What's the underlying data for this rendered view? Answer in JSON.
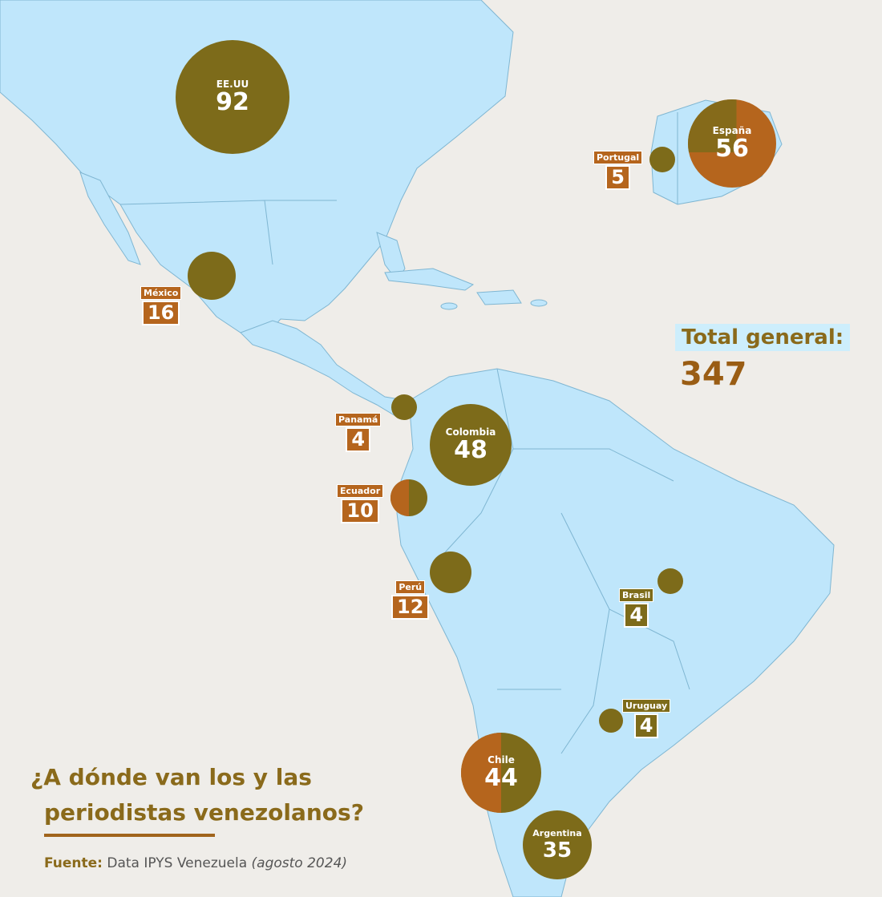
{
  "colors": {
    "land_background": "#efede9",
    "highlighted_countries": "#bfe6fb",
    "borders": "#7fb6d2",
    "bubble_olive": "#7d6b1a",
    "bubble_orange": "#b5651d",
    "label_box": "#b5651d",
    "title_text": "#8a6a1b"
  },
  "map": {
    "highlighted_regions": [
      "North America",
      "Central America",
      "Caribbean",
      "South America",
      "Iberian Peninsula"
    ],
    "bubble_fill": "#7d6b1a",
    "bubble_overlay_fill": "#b5651d"
  },
  "countries": [
    {
      "id": "eeuu",
      "name": "EE.UU",
      "value": "92"
    },
    {
      "id": "espana",
      "name": "España",
      "value": "56"
    },
    {
      "id": "portugal",
      "name": "Portugal",
      "value": "5"
    },
    {
      "id": "mexico",
      "name": "México",
      "value": "16"
    },
    {
      "id": "panama",
      "name": "Panamá",
      "value": "4"
    },
    {
      "id": "colombia",
      "name": "Colombia",
      "value": "48"
    },
    {
      "id": "ecuador",
      "name": "Ecuador",
      "value": "10"
    },
    {
      "id": "peru",
      "name": "Perú",
      "value": "12"
    },
    {
      "id": "brasil",
      "name": "Brasil",
      "value": "4"
    },
    {
      "id": "uruguay",
      "name": "Uruguay",
      "value": "4"
    },
    {
      "id": "chile",
      "name": "Chile",
      "value": "44"
    },
    {
      "id": "argentina",
      "name": "Argentina",
      "value": "35"
    }
  ],
  "total": {
    "label": "Total general:",
    "value": "347"
  },
  "headline": {
    "line1": "¿A dónde van los y las",
    "line2_underlined": "periodistas",
    "line2_rest": " venezolanos?"
  },
  "source": {
    "key": "Fuente:",
    "text": " Data IPYS Venezuela ",
    "date": "(agosto 2024)"
  }
}
